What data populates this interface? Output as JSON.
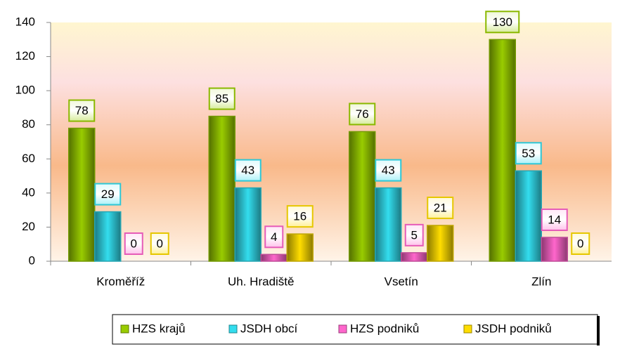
{
  "chart_data": {
    "type": "bar",
    "categories": [
      "Kroměříž",
      "Uh. Hradiště",
      "Vsetín",
      "Zlín"
    ],
    "series": [
      {
        "name": "HZS krajů",
        "color": "#99cc00",
        "values": [
          78,
          85,
          76,
          130
        ]
      },
      {
        "name": "JSDH obcí",
        "color": "#33ddee",
        "values": [
          29,
          43,
          43,
          53
        ]
      },
      {
        "name": "HZS podniků",
        "color": "#ff66cc",
        "values": [
          0,
          4,
          5,
          14
        ]
      },
      {
        "name": "JSDH podniků",
        "color": "#ffdd00",
        "values": [
          0,
          16,
          21,
          0
        ]
      }
    ],
    "ylim": [
      0,
      140
    ],
    "yticks": [
      0,
      20,
      40,
      60,
      80,
      100,
      120,
      140
    ],
    "grid": false,
    "legend": "bottom"
  }
}
